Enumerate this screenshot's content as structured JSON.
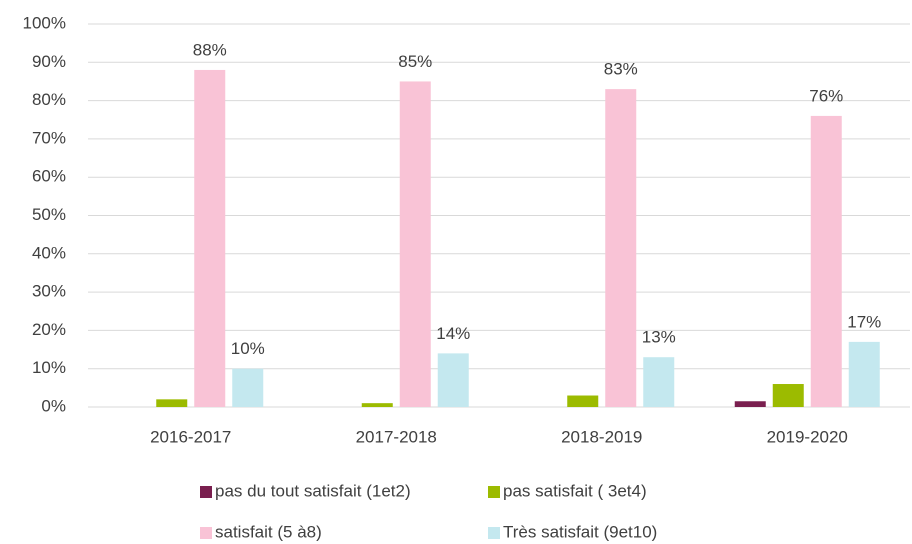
{
  "chart_data": {
    "type": "bar",
    "categories": [
      "2016-2017",
      "2017-2018",
      "2018-2019",
      "2019-2020"
    ],
    "series": [
      {
        "name": "pas du tout satisfait (1et2)",
        "color": "#7a1f4f",
        "values": [
          0,
          0,
          0,
          1.5
        ]
      },
      {
        "name": "pas satisfait ( 3et4)",
        "color": "#9cbb00",
        "values": [
          2,
          1,
          3,
          6
        ]
      },
      {
        "name": "satisfait (5 à8)",
        "color": "#f9c3d6",
        "values": [
          88,
          85,
          83,
          76
        ],
        "value_labels": [
          "88%",
          "85%",
          "83%",
          "76%"
        ]
      },
      {
        "name": "Très satisfait (9et10)",
        "color": "#c4e8ef",
        "values": [
          10,
          14,
          13,
          17
        ],
        "value_labels": [
          "10%",
          "14%",
          "13%",
          "17%"
        ]
      }
    ],
    "ylim": [
      0,
      100
    ],
    "yticks": [
      {
        "value": 0,
        "label": "0%"
      },
      {
        "value": 10,
        "label": "10%"
      },
      {
        "value": 20,
        "label": "20%"
      },
      {
        "value": 30,
        "label": "30%"
      },
      {
        "value": 40,
        "label": "40%"
      },
      {
        "value": 50,
        "label": "50%"
      },
      {
        "value": 60,
        "label": "60%"
      },
      {
        "value": 70,
        "label": "70%"
      },
      {
        "value": 80,
        "label": "80%"
      },
      {
        "value": 90,
        "label": "90%"
      },
      {
        "value": 100,
        "label": "100%"
      }
    ],
    "grid": true
  }
}
